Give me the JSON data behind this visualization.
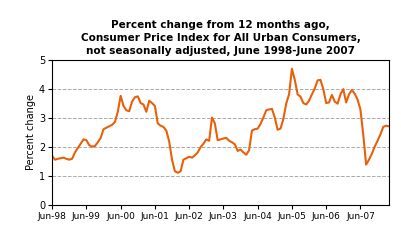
{
  "title": "Percent change from 12 months ago,\nConsumer Price Index for All Urban Consumers,\nnot seasonally adjusted, June 1998-June 2007",
  "ylabel": "Percent change",
  "line_color": "#E8610A",
  "line_width": 1.5,
  "background_color": "#ffffff",
  "ylim": [
    0,
    5
  ],
  "yticks": [
    0,
    1,
    2,
    3,
    4,
    5
  ],
  "grid_color": "#aaaaaa",
  "xtick_labels": [
    "Jun-98",
    "Jun-99",
    "Jun-00",
    "Jun-01",
    "Jun-02",
    "Jun-03",
    "Jun-04",
    "Jun-05",
    "Jun-06",
    "Jun-07"
  ],
  "values": [
    1.68,
    1.55,
    1.58,
    1.6,
    1.62,
    1.58,
    1.55,
    1.58,
    1.8,
    1.95,
    2.1,
    2.25,
    2.22,
    2.05,
    2.0,
    2.02,
    2.15,
    2.3,
    2.6,
    2.65,
    2.7,
    2.75,
    2.85,
    3.2,
    3.75,
    3.4,
    3.25,
    3.22,
    3.55,
    3.7,
    3.73,
    3.5,
    3.45,
    3.2,
    3.58,
    3.5,
    3.4,
    2.8,
    2.72,
    2.68,
    2.55,
    2.18,
    1.55,
    1.15,
    1.1,
    1.15,
    1.55,
    1.6,
    1.65,
    1.62,
    1.7,
    1.8,
    1.98,
    2.1,
    2.25,
    2.2,
    3.0,
    2.8,
    2.22,
    2.25,
    2.28,
    2.3,
    2.2,
    2.15,
    2.08,
    1.85,
    1.9,
    1.8,
    1.72,
    1.88,
    2.55,
    2.6,
    2.62,
    2.78,
    3.0,
    3.25,
    3.28,
    3.3,
    3.0,
    2.58,
    2.62,
    2.95,
    3.48,
    3.8,
    4.68,
    4.3,
    3.8,
    3.72,
    3.5,
    3.45,
    3.58,
    3.8,
    4.0,
    4.28,
    4.3,
    3.98,
    3.5,
    3.52,
    3.78,
    3.55,
    3.48,
    3.8,
    3.98,
    3.52,
    3.8,
    3.95,
    3.82,
    3.62,
    3.28,
    2.4,
    1.38,
    1.55,
    1.75,
    2.0,
    2.2,
    2.42,
    2.68,
    2.72,
    2.7
  ]
}
